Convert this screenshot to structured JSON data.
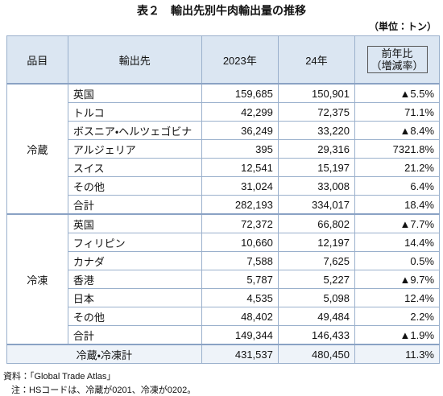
{
  "header": {
    "title": "表２　輸出先別牛肉輸出量の推移",
    "unit": "（単位：トン）"
  },
  "table": {
    "columns": [
      "品目",
      "輸出先",
      "2023年",
      "24年",
      {
        "label": "前年比",
        "sublabel": "（増減率）"
      }
    ],
    "groups": [
      {
        "label": "冷蔵",
        "rows": [
          [
            "英国",
            "159,685",
            "150,901",
            "▲5.5%"
          ],
          [
            "トルコ",
            "42,299",
            "72,375",
            "71.1%"
          ],
          [
            "ボスニア・ヘルツェゴビナ",
            "36,249",
            "33,220",
            "▲8.4%"
          ],
          [
            "アルジェリア",
            "395",
            "29,316",
            "7321.8%"
          ],
          [
            "スイス",
            "12,541",
            "15,197",
            "21.2%"
          ],
          [
            "その他",
            "31,024",
            "33,008",
            "6.4%"
          ],
          [
            "合計",
            "282,193",
            "334,017",
            "18.4%"
          ]
        ]
      },
      {
        "label": "冷凍",
        "rows": [
          [
            "英国",
            "72,372",
            "66,802",
            "▲7.7%"
          ],
          [
            "フィリピン",
            "10,660",
            "12,197",
            "14.4%"
          ],
          [
            "カナダ",
            "7,588",
            "7,625",
            "0.5%"
          ],
          [
            "香港",
            "5,787",
            "5,227",
            "▲9.7%"
          ],
          [
            "日本",
            "4,535",
            "5,098",
            "12.4%"
          ],
          [
            "その他",
            "48,402",
            "49,484",
            "2.2%"
          ],
          [
            "合計",
            "149,344",
            "146,433",
            "▲1.9%"
          ]
        ]
      }
    ],
    "grand_total": {
      "label": "冷蔵・冷凍計",
      "values": [
        "431,537",
        "480,450",
        "11.3%"
      ]
    }
  },
  "notes": [
    "資料：「Global Trade Atlas」",
    "注：HSコードは、冷蔵が0201、冷凍が0202。"
  ]
}
